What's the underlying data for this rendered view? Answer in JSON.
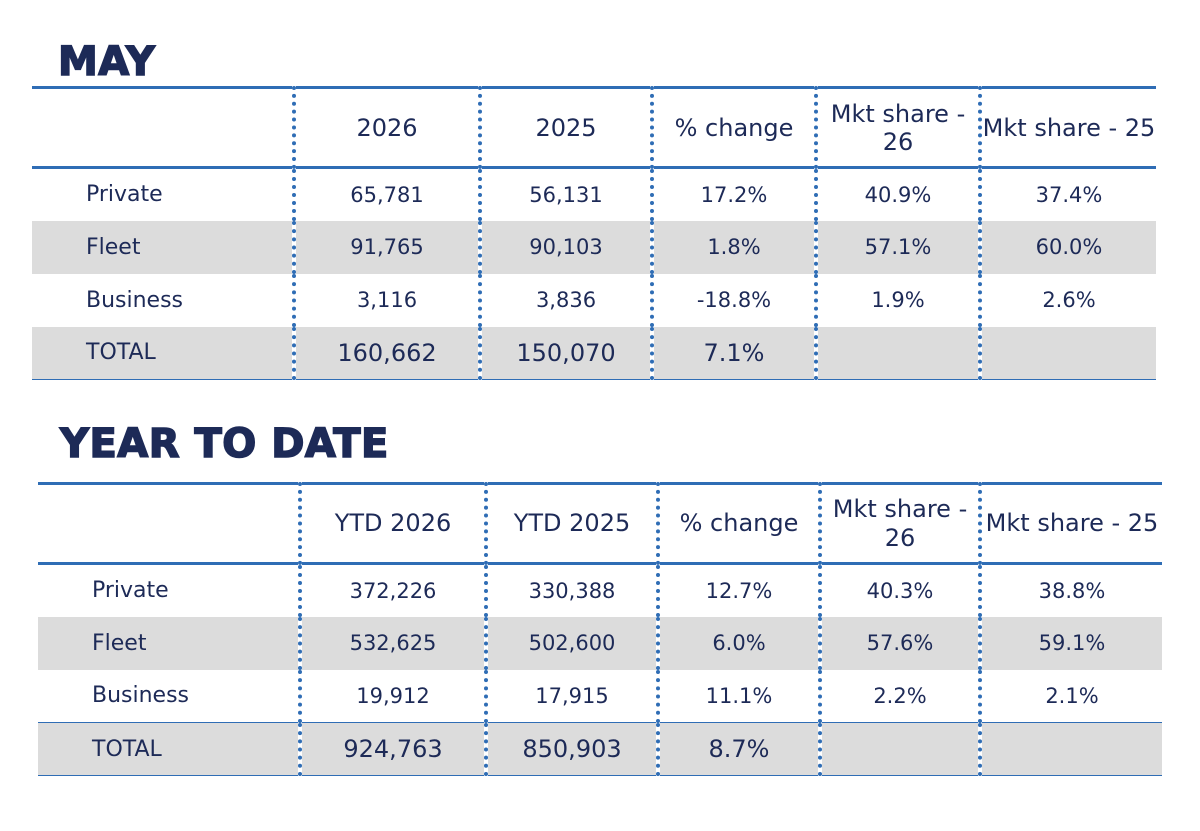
{
  "chart_data": [
    {
      "type": "table",
      "title": "MAY",
      "columns": [
        "",
        "2026",
        "2025",
        "% change",
        "Mkt share - 26",
        "Mkt share - 25"
      ],
      "rows": [
        {
          "label": "Private",
          "values": [
            "65,781",
            "56,131",
            "17.2%",
            "40.9%",
            "37.4%"
          ]
        },
        {
          "label": "Fleet",
          "values": [
            "91,765",
            "90,103",
            "1.8%",
            "57.1%",
            "60.0%"
          ]
        },
        {
          "label": "Business",
          "values": [
            "3,116",
            "3,836",
            "-18.8%",
            "1.9%",
            "2.6%"
          ]
        },
        {
          "label": "TOTAL",
          "values": [
            "160,662",
            "150,070",
            "7.1%",
            "",
            ""
          ]
        }
      ]
    },
    {
      "type": "table",
      "title": "YEAR TO DATE",
      "columns": [
        "",
        "YTD 2026",
        "YTD 2025",
        "% change",
        "Mkt share - 26",
        "Mkt share - 25"
      ],
      "rows": [
        {
          "label": "Private",
          "values": [
            "372,226",
            "330,388",
            "12.7%",
            "40.3%",
            "38.8%"
          ]
        },
        {
          "label": "Fleet",
          "values": [
            "532,625",
            "502,600",
            "6.0%",
            "57.6%",
            "59.1%"
          ]
        },
        {
          "label": "Business",
          "values": [
            "19,912",
            "17,915",
            "11.1%",
            "2.2%",
            "2.1%"
          ]
        },
        {
          "label": "TOTAL",
          "values": [
            "924,763",
            "850,903",
            "8.7%",
            "",
            ""
          ]
        }
      ]
    }
  ],
  "colors": {
    "title": "#1d2a57",
    "rule": "#2f6db5",
    "shade": "#dcdcdc"
  }
}
